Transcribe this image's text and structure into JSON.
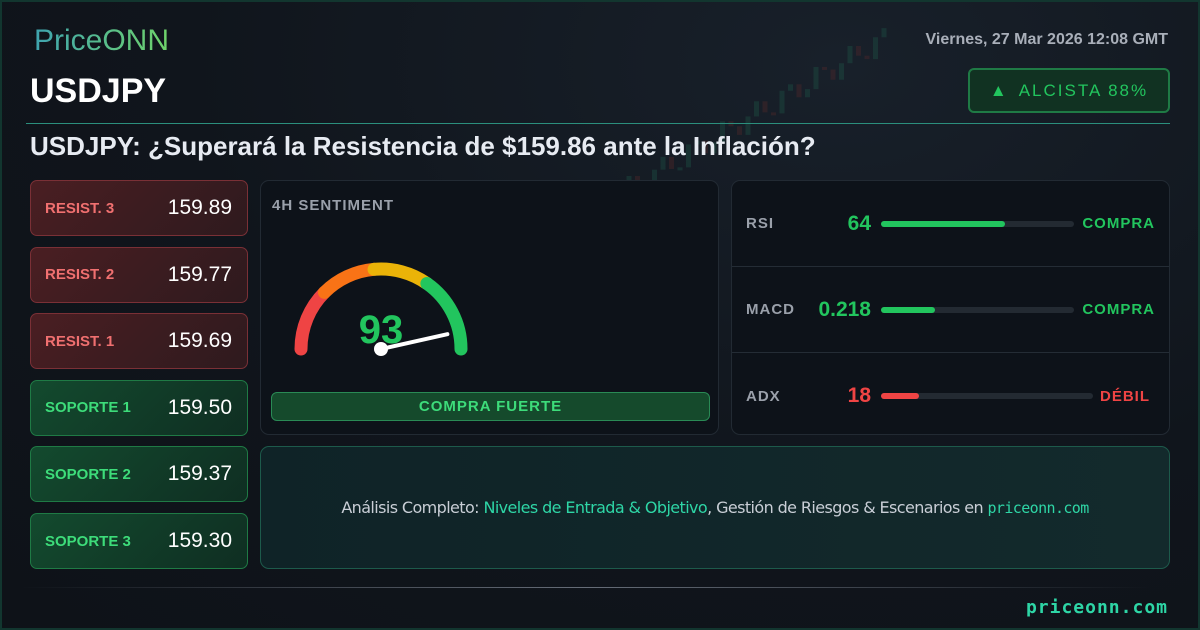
{
  "brand": {
    "logo": "PriceONN",
    "footer_domain": "priceonn.com"
  },
  "header": {
    "symbol": "USDJPY",
    "date": "Viernes, 27 Mar 2026 12:08 GMT",
    "trend": {
      "icon": "triangle-up-icon",
      "label": "ALCISTA 88%",
      "color": "#22c55e"
    }
  },
  "headline": "USDJPY: ¿Superará la Resistencia de $159.86 ante la Inflación?",
  "levels": [
    {
      "label": "RESIST. 3",
      "value": "159.89",
      "type": "resistance"
    },
    {
      "label": "RESIST. 2",
      "value": "159.77",
      "type": "resistance"
    },
    {
      "label": "RESIST. 1",
      "value": "159.69",
      "type": "resistance"
    },
    {
      "label": "SOPORTE 1",
      "value": "159.50",
      "type": "support"
    },
    {
      "label": "SOPORTE 2",
      "value": "159.37",
      "type": "support"
    },
    {
      "label": "SOPORTE 3",
      "value": "159.30",
      "type": "support"
    }
  ],
  "sentiment": {
    "title": "4H SENTIMENT",
    "value": "93",
    "score": 93,
    "verdict": "COMPRA FUERTE",
    "colors": {
      "red": "#ef4444",
      "orange": "#f97316",
      "yellow": "#eab308",
      "green": "#22c55e"
    }
  },
  "indicators": [
    {
      "name": "RSI",
      "value": "64",
      "fill_pct": 64,
      "signal": "COMPRA",
      "color": "#22c55e"
    },
    {
      "name": "MACD",
      "value": "0.218",
      "fill_pct": 28,
      "signal": "COMPRA",
      "color": "#22c55e"
    },
    {
      "name": "ADX",
      "value": "18",
      "fill_pct": 18,
      "signal": "DÉBIL",
      "color": "#ef4444"
    }
  ],
  "cta": {
    "prefix": "Análisis Completo: ",
    "highlight": "Niveles de Entrada & Objetivo",
    "middle": ", Gestión de Riesgos & Escenarios en ",
    "domain": "priceonn.com"
  }
}
